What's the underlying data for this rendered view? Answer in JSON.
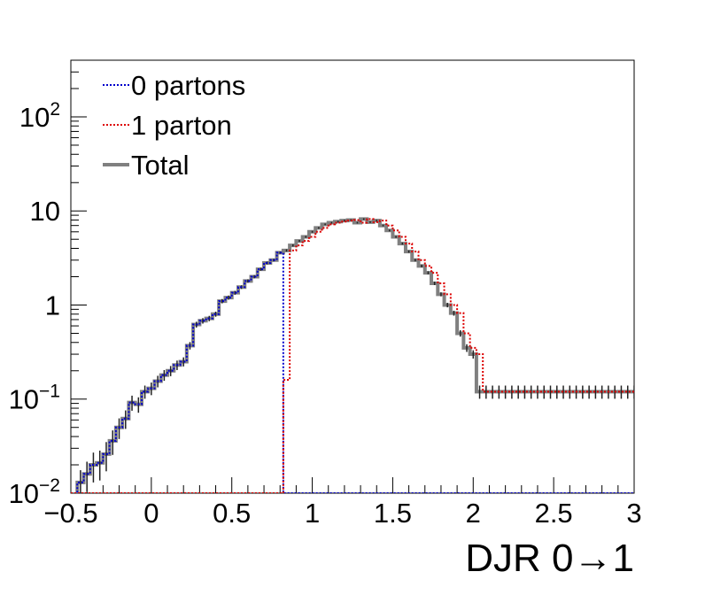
{
  "chart_data": {
    "type": "line",
    "xlabel": "DJR 0→1",
    "xlim": [
      -0.5,
      3.0
    ],
    "ylim": [
      0.01,
      400
    ],
    "yscale": "log",
    "x_ticks": [
      -0.5,
      0,
      0.5,
      1,
      1.5,
      2,
      2.5,
      3
    ],
    "x_tick_labels": [
      "−0.5",
      "0",
      "0.5",
      "1",
      "1.5",
      "2",
      "2.5",
      "3"
    ],
    "y_ticks": [
      {
        "value": 0.01,
        "base": "10",
        "exp": "−2"
      },
      {
        "value": 0.1,
        "base": "10",
        "exp": "−1"
      },
      {
        "value": 1,
        "base": "1",
        "exp": ""
      },
      {
        "value": 10,
        "base": "10",
        "exp": ""
      },
      {
        "value": 100,
        "base": "10",
        "exp": "2"
      }
    ],
    "legend_position": "top-left",
    "bin_edges": [
      -0.5,
      -0.46,
      -0.42,
      -0.38,
      -0.34,
      -0.3,
      -0.26,
      -0.22,
      -0.18,
      -0.14,
      -0.1,
      -0.06,
      -0.02,
      0.02,
      0.06,
      0.1,
      0.14,
      0.18,
      0.22,
      0.26,
      0.3,
      0.34,
      0.38,
      0.42,
      0.46,
      0.5,
      0.54,
      0.58,
      0.62,
      0.66,
      0.7,
      0.74,
      0.78,
      0.82,
      0.86,
      0.9,
      0.94,
      0.98,
      1.02,
      1.06,
      1.1,
      1.14,
      1.18,
      1.22,
      1.26,
      1.3,
      1.34,
      1.38,
      1.42,
      1.46,
      1.5,
      1.54,
      1.58,
      1.62,
      1.66,
      1.7,
      1.74,
      1.78,
      1.82,
      1.86,
      1.9,
      1.94,
      1.98,
      2.02,
      2.06,
      2.1,
      2.14,
      2.18,
      2.22,
      2.26,
      2.3,
      2.34,
      2.38,
      2.42,
      2.46,
      2.5,
      2.54,
      2.58,
      2.62,
      2.66,
      2.7,
      2.74,
      2.78,
      2.82,
      2.86,
      2.9,
      2.94,
      2.98,
      3.02
    ],
    "series": [
      {
        "name": "0 partons",
        "color": "#0000cc",
        "style": "dotted",
        "values": [
          0.005,
          0.013,
          0.016,
          0.02,
          0.021,
          0.026,
          0.036,
          0.05,
          0.062,
          0.092,
          0.088,
          0.12,
          0.13,
          0.155,
          0.18,
          0.2,
          0.23,
          0.25,
          0.37,
          0.62,
          0.68,
          0.72,
          0.8,
          1.1,
          1.2,
          1.35,
          1.55,
          1.8,
          2.0,
          2.4,
          2.8,
          3.0,
          3.6,
          0.01,
          0.01,
          0.01,
          0.01,
          0.01,
          0.01,
          0.01,
          0.01,
          0.01,
          0.01,
          0.01,
          0.01,
          0.01,
          0.01,
          0.01,
          0.01,
          0.01,
          0.01,
          0.01,
          0.01,
          0.01,
          0.01,
          0.01,
          0.01,
          0.01,
          0.01,
          0.01,
          0.01,
          0.01,
          0.01,
          0.01,
          0.01,
          0.01,
          0.01,
          0.01,
          0.01,
          0.01,
          0.01,
          0.01,
          0.01,
          0.01,
          0.01,
          0.01,
          0.01,
          0.01,
          0.01,
          0.01,
          0.01,
          0.01,
          0.01,
          0.01,
          0.01,
          0.01,
          0.01,
          0.01
        ]
      },
      {
        "name": "1 parton",
        "color": "#dd0000",
        "style": "dotted",
        "values": [
          0.01,
          0.01,
          0.01,
          0.01,
          0.01,
          0.01,
          0.01,
          0.01,
          0.01,
          0.01,
          0.01,
          0.01,
          0.01,
          0.01,
          0.01,
          0.01,
          0.01,
          0.01,
          0.01,
          0.01,
          0.01,
          0.01,
          0.01,
          0.01,
          0.01,
          0.01,
          0.01,
          0.01,
          0.01,
          0.01,
          0.01,
          0.01,
          0.01,
          0.16,
          3.8,
          4.3,
          4.8,
          5.3,
          6.0,
          6.6,
          7.2,
          7.5,
          7.7,
          7.9,
          8.0,
          7.5,
          8.2,
          7.6,
          7.9,
          7.0,
          6.2,
          5.3,
          4.5,
          3.7,
          3.0,
          2.6,
          2.2,
          1.7,
          1.3,
          1.0,
          0.82,
          0.5,
          0.35,
          0.3,
          0.12,
          0.12,
          0.12,
          0.12,
          0.12,
          0.12,
          0.12,
          0.12,
          0.12,
          0.12,
          0.12,
          0.12,
          0.12,
          0.12,
          0.12,
          0.12,
          0.12,
          0.12,
          0.12,
          0.12,
          0.12,
          0.12,
          0.12,
          0.12
        ]
      },
      {
        "name": "Total",
        "color": "#808080",
        "style": "solid",
        "values": [
          0.005,
          0.013,
          0.016,
          0.02,
          0.021,
          0.026,
          0.036,
          0.05,
          0.062,
          0.092,
          0.088,
          0.12,
          0.13,
          0.155,
          0.18,
          0.2,
          0.23,
          0.25,
          0.37,
          0.62,
          0.68,
          0.72,
          0.8,
          1.1,
          1.2,
          1.35,
          1.55,
          1.8,
          2.0,
          2.4,
          2.8,
          3.0,
          3.6,
          3.8,
          4.3,
          4.8,
          5.3,
          6.0,
          6.6,
          7.2,
          7.5,
          7.7,
          7.9,
          8.0,
          7.5,
          8.2,
          7.6,
          7.9,
          7.0,
          6.2,
          5.3,
          4.5,
          3.7,
          3.0,
          2.6,
          2.2,
          1.7,
          1.3,
          1.0,
          0.82,
          0.5,
          0.35,
          0.3,
          0.12,
          0.12,
          0.12,
          0.12,
          0.12,
          0.12,
          0.12,
          0.12,
          0.12,
          0.12,
          0.12,
          0.12,
          0.12,
          0.12,
          0.12,
          0.12,
          0.12,
          0.12,
          0.12,
          0.12,
          0.12,
          0.12,
          0.12,
          0.12,
          0.12
        ]
      }
    ]
  }
}
